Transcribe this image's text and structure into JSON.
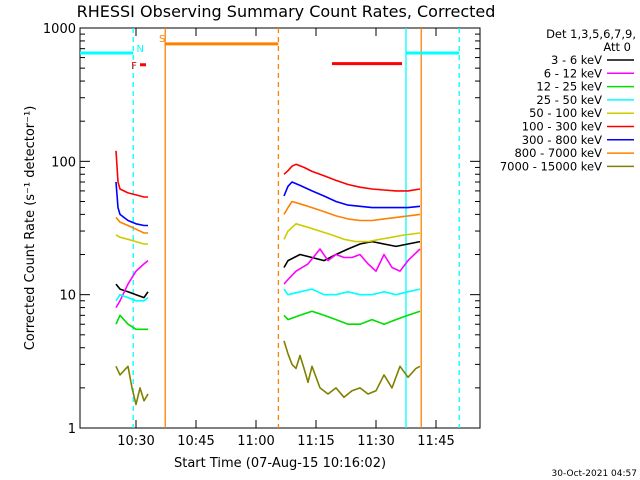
{
  "page": {
    "timestamp": "30-Oct-2021 04:57"
  },
  "chart_data": {
    "type": "line",
    "title": "RHESSI Observing Summary Count Rates, Corrected",
    "xlabel": "Start Time (07-Aug-15 10:16:02)",
    "ylabel": "Corrected Count Rate (s⁻¹ detector⁻¹)",
    "x_unit": "minutes after 10:16:02",
    "xlim": [
      0,
      100
    ],
    "ylim": [
      1,
      1000
    ],
    "yscale": "log",
    "x_ticks": [
      {
        "label": "10:30",
        "value": 14
      },
      {
        "label": "10:45",
        "value": 29
      },
      {
        "label": "11:00",
        "value": 44
      },
      {
        "label": "11:15",
        "value": 59
      },
      {
        "label": "11:30",
        "value": 74
      },
      {
        "label": "11:45",
        "value": 89
      }
    ],
    "y_ticks": [
      {
        "label": "1",
        "value": 1
      },
      {
        "label": "10",
        "value": 10
      },
      {
        "label": "100",
        "value": 100
      },
      {
        "label": "1000",
        "value": 1000
      }
    ],
    "legend": {
      "position": "right",
      "header": [
        "Det 1,3,5,6,7,9,",
        "Att 0"
      ],
      "entries": [
        {
          "label": "3 - 6 keV",
          "color": "#000000"
        },
        {
          "label": "6 - 12 keV",
          "color": "#ff00ff"
        },
        {
          "label": "12 - 25 keV",
          "color": "#00dd00"
        },
        {
          "label": "25 - 50 keV",
          "color": "#00ffff"
        },
        {
          "label": "50 - 100 keV",
          "color": "#cccc00"
        },
        {
          "label": "100 - 300 keV",
          "color": "#ff0000"
        },
        {
          "label": "300 - 800 keV",
          "color": "#0000ff"
        },
        {
          "label": "800 - 7000 keV",
          "color": "#ff8000"
        },
        {
          "label": "7000 - 15000 keV",
          "color": "#808000"
        }
      ]
    },
    "series": [
      {
        "name": "3 - 6 keV",
        "color": "#000000",
        "segments": [
          [
            [
              9,
              12
            ],
            [
              10,
              11
            ],
            [
              12,
              10.5
            ],
            [
              14,
              10
            ],
            [
              16,
              9.5
            ],
            [
              17,
              10.5
            ]
          ],
          [
            [
              51,
              16
            ],
            [
              52,
              18
            ],
            [
              55,
              20
            ],
            [
              58,
              19
            ],
            [
              61,
              18
            ],
            [
              64,
              20
            ],
            [
              67,
              22
            ],
            [
              70,
              24
            ],
            [
              73,
              25
            ],
            [
              76,
              24
            ],
            [
              79,
              23
            ],
            [
              82,
              24
            ],
            [
              85,
              25
            ]
          ]
        ]
      },
      {
        "name": "6 - 12 keV",
        "color": "#ff00ff",
        "segments": [
          [
            [
              9,
              8
            ],
            [
              10,
              9
            ],
            [
              12,
              12
            ],
            [
              14,
              15
            ],
            [
              16,
              17
            ],
            [
              17,
              18
            ]
          ],
          [
            [
              51,
              12
            ],
            [
              52,
              13
            ],
            [
              54,
              15
            ],
            [
              57,
              17
            ],
            [
              60,
              22
            ],
            [
              62,
              18
            ],
            [
              64,
              20
            ],
            [
              66,
              19
            ],
            [
              68,
              19
            ],
            [
              70,
              20
            ],
            [
              72,
              17
            ],
            [
              74,
              15
            ],
            [
              76,
              20
            ],
            [
              78,
              16
            ],
            [
              80,
              15
            ],
            [
              82,
              18
            ],
            [
              85,
              22
            ]
          ]
        ]
      },
      {
        "name": "12 - 25 keV",
        "color": "#00dd00",
        "segments": [
          [
            [
              9,
              6
            ],
            [
              10,
              7
            ],
            [
              12,
              6
            ],
            [
              14,
              5.5
            ],
            [
              16,
              5.5
            ],
            [
              17,
              5.5
            ]
          ],
          [
            [
              51,
              7
            ],
            [
              52,
              6.5
            ],
            [
              55,
              7
            ],
            [
              58,
              7.5
            ],
            [
              61,
              7
            ],
            [
              64,
              6.5
            ],
            [
              67,
              6
            ],
            [
              70,
              6
            ],
            [
              73,
              6.5
            ],
            [
              76,
              6
            ],
            [
              79,
              6.5
            ],
            [
              82,
              7
            ],
            [
              85,
              7.5
            ]
          ]
        ]
      },
      {
        "name": "25 - 50 keV",
        "color": "#00ffff",
        "segments": [
          [
            [
              9,
              9
            ],
            [
              10,
              10
            ],
            [
              12,
              9.5
            ],
            [
              14,
              9
            ],
            [
              16,
              9
            ],
            [
              17,
              9.5
            ]
          ],
          [
            [
              51,
              11
            ],
            [
              52,
              10
            ],
            [
              55,
              10.5
            ],
            [
              58,
              11
            ],
            [
              61,
              10
            ],
            [
              64,
              10
            ],
            [
              67,
              10.5
            ],
            [
              70,
              10
            ],
            [
              73,
              10
            ],
            [
              76,
              10.5
            ],
            [
              79,
              10
            ],
            [
              82,
              10.5
            ],
            [
              85,
              11
            ]
          ]
        ]
      },
      {
        "name": "50 - 100 keV",
        "color": "#cccc00",
        "segments": [
          [
            [
              9,
              28
            ],
            [
              10,
              27
            ],
            [
              12,
              26
            ],
            [
              14,
              25
            ],
            [
              16,
              24
            ],
            [
              17,
              24
            ]
          ],
          [
            [
              51,
              26
            ],
            [
              52,
              30
            ],
            [
              54,
              34
            ],
            [
              57,
              32
            ],
            [
              60,
              30
            ],
            [
              63,
              28
            ],
            [
              66,
              26
            ],
            [
              69,
              25
            ],
            [
              72,
              25
            ],
            [
              75,
              26
            ],
            [
              78,
              27
            ],
            [
              81,
              28
            ],
            [
              85,
              29
            ]
          ]
        ]
      },
      {
        "name": "100 - 300 keV",
        "color": "#ff0000",
        "segments": [
          [
            [
              9,
              120
            ],
            [
              9.5,
              70
            ],
            [
              10,
              62
            ],
            [
              12,
              58
            ],
            [
              14,
              56
            ],
            [
              16,
              54
            ],
            [
              17,
              54
            ]
          ],
          [
            [
              51,
              80
            ],
            [
              52,
              85
            ],
            [
              53,
              92
            ],
            [
              54,
              95
            ],
            [
              56,
              90
            ],
            [
              58,
              84
            ],
            [
              61,
              78
            ],
            [
              64,
              72
            ],
            [
              67,
              67
            ],
            [
              70,
              64
            ],
            [
              73,
              62
            ],
            [
              76,
              61
            ],
            [
              79,
              60
            ],
            [
              82,
              60
            ],
            [
              85,
              62
            ]
          ]
        ]
      },
      {
        "name": "300 - 800 keV",
        "color": "#0000ff",
        "segments": [
          [
            [
              9,
              70
            ],
            [
              9.5,
              45
            ],
            [
              10,
              40
            ],
            [
              12,
              36
            ],
            [
              14,
              34
            ],
            [
              16,
              33
            ],
            [
              17,
              33
            ]
          ],
          [
            [
              51,
              55
            ],
            [
              52,
              65
            ],
            [
              53,
              70
            ],
            [
              55,
              66
            ],
            [
              58,
              60
            ],
            [
              61,
              55
            ],
            [
              64,
              50
            ],
            [
              67,
              47
            ],
            [
              70,
              46
            ],
            [
              73,
              45
            ],
            [
              76,
              45
            ],
            [
              79,
              45
            ],
            [
              82,
              45
            ],
            [
              85,
              46
            ]
          ]
        ]
      },
      {
        "name": "800 - 7000 keV",
        "color": "#ff8000",
        "segments": [
          [
            [
              9,
              38
            ],
            [
              10,
              35
            ],
            [
              12,
              33
            ],
            [
              14,
              31
            ],
            [
              16,
              29
            ],
            [
              17,
              29
            ]
          ],
          [
            [
              51,
              40
            ],
            [
              52,
              45
            ],
            [
              53,
              50
            ],
            [
              55,
              48
            ],
            [
              58,
              45
            ],
            [
              61,
              42
            ],
            [
              64,
              39
            ],
            [
              67,
              37
            ],
            [
              70,
              36
            ],
            [
              73,
              36
            ],
            [
              76,
              37
            ],
            [
              79,
              38
            ],
            [
              82,
              39
            ],
            [
              85,
              40
            ]
          ]
        ]
      },
      {
        "name": "7000 - 15000 keV",
        "color": "#808000",
        "segments": [
          [
            [
              9,
              2.9
            ],
            [
              10,
              2.5
            ],
            [
              12,
              2.9
            ],
            [
              13,
              2
            ],
            [
              14,
              1.5
            ],
            [
              15,
              2
            ],
            [
              16,
              1.6
            ],
            [
              17,
              1.8
            ]
          ],
          [
            [
              51,
              4.5
            ],
            [
              52,
              3.6
            ],
            [
              53,
              3
            ],
            [
              54,
              2.8
            ],
            [
              55,
              3.5
            ],
            [
              56,
              2.8
            ],
            [
              57,
              2.2
            ],
            [
              58,
              2.9
            ],
            [
              60,
              2
            ],
            [
              62,
              1.8
            ],
            [
              64,
              2
            ],
            [
              66,
              1.7
            ],
            [
              68,
              1.9
            ],
            [
              70,
              2
            ],
            [
              72,
              1.8
            ],
            [
              74,
              1.9
            ],
            [
              76,
              2.5
            ],
            [
              78,
              2
            ],
            [
              80,
              2.9
            ],
            [
              82,
              2.4
            ],
            [
              84,
              2.8
            ],
            [
              85,
              2.9
            ]
          ]
        ]
      }
    ],
    "vlines": [
      {
        "x": 13.3,
        "color": "#00ffff",
        "style": "dashed"
      },
      {
        "x": 21.3,
        "color": "#ff8000",
        "style": "solid"
      },
      {
        "x": 49.6,
        "color": "#ff8000",
        "style": "dashed"
      },
      {
        "x": 81.5,
        "color": "#00ffff",
        "style": "solid"
      },
      {
        "x": 85.3,
        "color": "#ff8000",
        "style": "solid"
      },
      {
        "x": 94.8,
        "color": "#00ffff",
        "style": "dashed"
      }
    ],
    "flag_bars": [
      {
        "label": "",
        "color": "#00ffff",
        "x_start": 0,
        "x_end": 13.3,
        "y": 650
      },
      {
        "label": "",
        "color": "#00ffff",
        "x_start": 81.5,
        "x_end": 94.8,
        "y": 650
      },
      {
        "label": "N",
        "color": "#00ffff",
        "x_start": 13.3,
        "x_end": 13.3,
        "y": 650
      },
      {
        "label": "F",
        "color": "#ff0000",
        "x_start": 15,
        "x_end": 16.5,
        "y": 530
      },
      {
        "label": "S",
        "color": "#ff8000",
        "x_start": 21.3,
        "x_end": 49.6,
        "y": 760
      },
      {
        "label": "",
        "color": "#ff0000",
        "x_start": 63,
        "x_end": 80.5,
        "y": 540
      }
    ]
  }
}
